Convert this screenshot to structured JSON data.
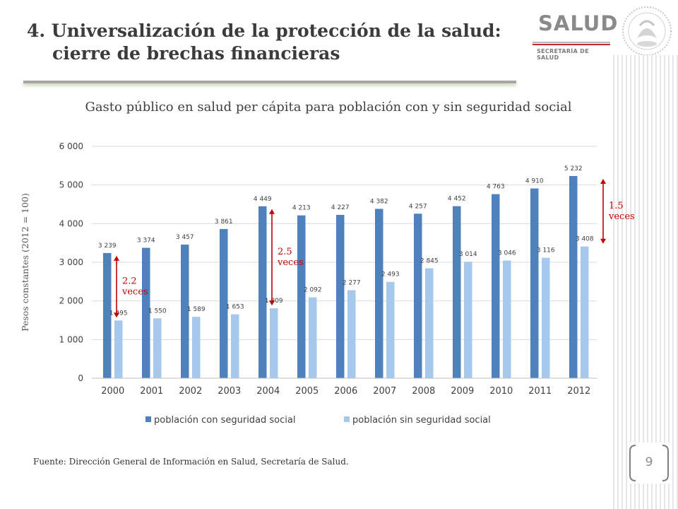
{
  "slide": {
    "title_line1": "4. Universalización de la protección de la salud:",
    "title_line2": "cierre de brechas financieras",
    "chart_title": "Gasto público en salud per cápita para población con y sin seguridad social",
    "source": "Fuente: Dirección General de Información en Salud, Secretaría de Salud.",
    "page_number": "9",
    "logo_text": "SALUD",
    "logo_subtext": "SECRETARÍA DE SALUD"
  },
  "colors": {
    "series1": "#4f81bd",
    "series2": "#a6c8ec",
    "arrow": "#c00000",
    "grid": "#d9d9d9"
  },
  "chart_data": {
    "type": "bar",
    "title": "Gasto público en salud per cápita para población con y sin seguridad social",
    "xlabel": "",
    "ylabel": "Pesos constantes (2012 = 100)",
    "ylim": [
      0,
      6000
    ],
    "yticks": [
      0,
      1000,
      2000,
      3000,
      4000,
      5000,
      6000
    ],
    "ytick_labels": [
      "0",
      "1 000",
      "2 000",
      "3 000",
      "4 000",
      "5 000",
      "6 000"
    ],
    "grid": true,
    "legend": "bottom",
    "categories": [
      "2000",
      "2001",
      "2002",
      "2003",
      "2004",
      "2005",
      "2006",
      "2007",
      "2008",
      "2009",
      "2010",
      "2011",
      "2012"
    ],
    "series": [
      {
        "name": "población con seguridad social",
        "values": [
          3239,
          3374,
          3457,
          3861,
          4449,
          4213,
          4227,
          4382,
          4257,
          4452,
          4763,
          4910,
          5232
        ],
        "labels": [
          "3 239",
          "3 374",
          "3 457",
          "3 861",
          "4 449",
          "4 213",
          "4 227",
          "4 382",
          "4 257",
          "4 452",
          "4 763",
          "4 910",
          "5 232"
        ]
      },
      {
        "name": "población sin seguridad social",
        "values": [
          1495,
          1550,
          1589,
          1653,
          1809,
          2092,
          2277,
          2493,
          2845,
          3014,
          3046,
          3116,
          3408
        ],
        "labels": [
          "1 495",
          "1 550",
          "1 589",
          "1 653",
          "1 809",
          "2 092",
          "2 277",
          "2 493",
          "2 845",
          "3 014",
          "3 046",
          "3 116",
          "3 408"
        ]
      }
    ],
    "annotations": [
      {
        "category_index": 0,
        "line1": "2.2",
        "line2": "veces",
        "from": 1495,
        "to": 3239
      },
      {
        "category_index": 4,
        "line1": "2.5",
        "line2": "veces",
        "from": 1809,
        "to": 4449
      },
      {
        "category_index": 12,
        "line1": "1.5",
        "line2": "veces",
        "from": 3408,
        "to": 5232
      }
    ]
  }
}
